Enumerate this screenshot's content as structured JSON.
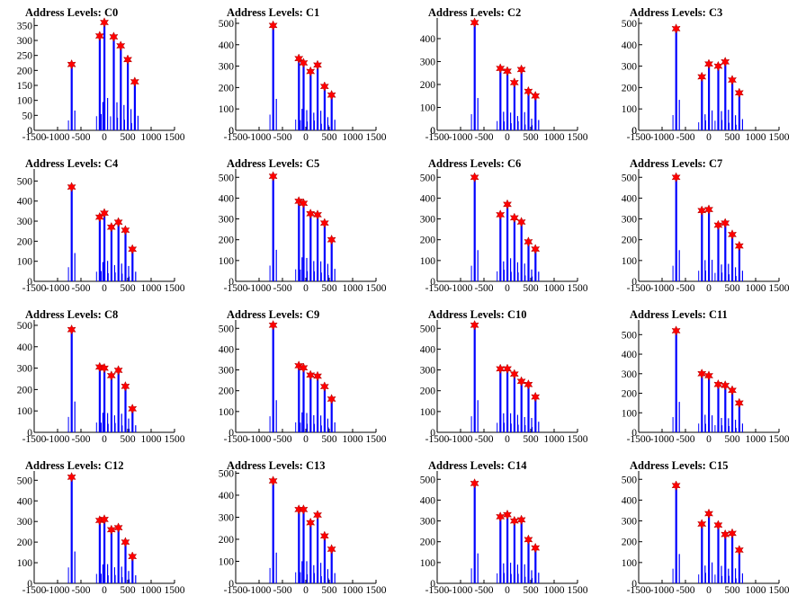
{
  "chart_data": [
    {
      "type": "bar",
      "title": "Address Levels: C0",
      "x": [
        -700,
        -100,
        0,
        200,
        350,
        500,
        650
      ],
      "values": [
        220,
        315,
        360,
        312,
        282,
        236,
        162
      ],
      "ylim": [
        0,
        375
      ],
      "yticks": [
        0,
        50,
        100,
        150,
        200,
        250,
        300,
        350
      ],
      "xticks": [
        -1500,
        -1000,
        -500,
        0,
        500,
        1000,
        1500
      ],
      "xlim": [
        -1500,
        1500
      ]
    },
    {
      "type": "bar",
      "title": "Address Levels: C1",
      "x": [
        -700,
        -150,
        -50,
        100,
        250,
        400,
        550
      ],
      "values": [
        490,
        335,
        315,
        275,
        305,
        205,
        165
      ],
      "ylim": [
        0,
        525
      ],
      "yticks": [
        0,
        100,
        200,
        300,
        400,
        500
      ],
      "xticks": [
        -1500,
        -1000,
        -500,
        0,
        500,
        1000,
        1500
      ],
      "xlim": [
        -1500,
        1500
      ]
    },
    {
      "type": "bar",
      "title": "Address Levels: C2",
      "x": [
        -700,
        -150,
        0,
        150,
        300,
        450,
        600
      ],
      "values": [
        470,
        270,
        258,
        208,
        265,
        170,
        150
      ],
      "ylim": [
        0,
        490
      ],
      "yticks": [
        0,
        100,
        200,
        300,
        400
      ],
      "xticks": [
        -1500,
        -1000,
        -500,
        0,
        500,
        1000,
        1500
      ],
      "xlim": [
        -1500,
        1500
      ]
    },
    {
      "type": "bar",
      "title": "Address Levels: C3",
      "x": [
        -700,
        -150,
        0,
        200,
        350,
        500,
        650
      ],
      "values": [
        475,
        250,
        310,
        300,
        320,
        235,
        175
      ],
      "ylim": [
        0,
        525
      ],
      "yticks": [
        0,
        100,
        200,
        300,
        400,
        500
      ],
      "xticks": [
        -1500,
        -1000,
        -500,
        0,
        500,
        1000,
        1500
      ],
      "xlim": [
        -1500,
        1500
      ]
    },
    {
      "type": "bar",
      "title": "Address Levels: C4",
      "x": [
        -700,
        -100,
        0,
        150,
        300,
        450,
        600
      ],
      "values": [
        470,
        320,
        340,
        270,
        295,
        255,
        160
      ],
      "ylim": [
        0,
        560
      ],
      "yticks": [
        100,
        200,
        300,
        400,
        500
      ],
      "xticks": [
        -1500,
        -1000,
        -500,
        0,
        500,
        1000,
        1500
      ],
      "xlim": [
        -1500,
        1500
      ]
    },
    {
      "type": "bar",
      "title": "Address Levels: C5",
      "x": [
        -700,
        -150,
        -50,
        100,
        250,
        400,
        550
      ],
      "values": [
        505,
        385,
        375,
        325,
        320,
        280,
        200
      ],
      "ylim": [
        0,
        540
      ],
      "yticks": [
        100,
        200,
        300,
        400,
        500
      ],
      "xticks": [
        -1500,
        -1000,
        -500,
        0,
        500,
        1000,
        1500
      ],
      "xlim": [
        -1500,
        1500
      ]
    },
    {
      "type": "bar",
      "title": "Address Levels: C6",
      "x": [
        -700,
        -150,
        0,
        150,
        300,
        450,
        600
      ],
      "values": [
        500,
        320,
        370,
        305,
        285,
        190,
        155
      ],
      "ylim": [
        0,
        540
      ],
      "yticks": [
        100,
        200,
        300,
        400,
        500
      ],
      "xticks": [
        -1500,
        -1000,
        -500,
        0,
        500,
        1000,
        1500
      ],
      "xlim": [
        -1500,
        1500
      ]
    },
    {
      "type": "bar",
      "title": "Address Levels: C7",
      "x": [
        -700,
        -150,
        0,
        200,
        350,
        500,
        650
      ],
      "values": [
        500,
        340,
        345,
        270,
        280,
        225,
        170
      ],
      "ylim": [
        0,
        540
      ],
      "yticks": [
        100,
        200,
        300,
        400,
        500
      ],
      "xticks": [
        -1500,
        -1000,
        -500,
        0,
        500,
        1000,
        1500
      ],
      "xlim": [
        -1500,
        1500
      ]
    },
    {
      "type": "bar",
      "title": "Address Levels: C8",
      "x": [
        -700,
        -100,
        0,
        150,
        300,
        450,
        600
      ],
      "values": [
        480,
        305,
        300,
        265,
        290,
        215,
        110
      ],
      "ylim": [
        0,
        525
      ],
      "yticks": [
        100,
        200,
        300,
        400,
        500
      ],
      "xticks": [
        -1500,
        -1000,
        -500,
        0,
        500,
        1000,
        1500
      ],
      "xlim": [
        -1500,
        1500
      ]
    },
    {
      "type": "bar",
      "title": "Address Levels: C9",
      "x": [
        -700,
        -150,
        -50,
        100,
        250,
        400,
        550
      ],
      "values": [
        515,
        320,
        310,
        275,
        270,
        220,
        160
      ],
      "ylim": [
        0,
        540
      ],
      "yticks": [
        100,
        200,
        300,
        400,
        500
      ],
      "xticks": [
        -1500,
        -1000,
        -500,
        0,
        500,
        1000,
        1500
      ],
      "xlim": [
        -1500,
        1500
      ]
    },
    {
      "type": "bar",
      "title": "Address Levels: C10",
      "x": [
        -700,
        -150,
        0,
        150,
        300,
        450,
        600
      ],
      "values": [
        515,
        305,
        305,
        280,
        245,
        230,
        170
      ],
      "ylim": [
        0,
        540
      ],
      "yticks": [
        100,
        200,
        300,
        400,
        500
      ],
      "xticks": [
        -1500,
        -1000,
        -500,
        0,
        500,
        1000,
        1500
      ],
      "xlim": [
        -1500,
        1500
      ]
    },
    {
      "type": "bar",
      "title": "Address Levels: C11",
      "x": [
        -700,
        -150,
        0,
        200,
        350,
        500,
        650
      ],
      "values": [
        520,
        300,
        290,
        245,
        240,
        215,
        150
      ],
      "ylim": [
        0,
        575
      ],
      "yticks": [
        100,
        200,
        300,
        400,
        500
      ],
      "xticks": [
        -1500,
        -1000,
        -500,
        0,
        500,
        1000,
        1500
      ],
      "xlim": [
        -1500,
        1500
      ]
    },
    {
      "type": "bar",
      "title": "Address Levels: C12",
      "x": [
        -700,
        -100,
        0,
        150,
        300,
        450,
        600
      ],
      "values": [
        515,
        305,
        310,
        260,
        270,
        200,
        130
      ],
      "ylim": [
        0,
        545
      ],
      "yticks": [
        100,
        200,
        300,
        400,
        500
      ],
      "xticks": [
        -1500,
        -1000,
        -500,
        0,
        500,
        1000,
        1500
      ],
      "xlim": [
        -1500,
        1500
      ]
    },
    {
      "type": "bar",
      "title": "Address Levels: C13",
      "x": [
        -700,
        -150,
        -50,
        100,
        250,
        400,
        550
      ],
      "values": [
        465,
        335,
        335,
        275,
        310,
        215,
        155
      ],
      "ylim": [
        0,
        510
      ],
      "yticks": [
        100,
        200,
        300,
        400,
        500
      ],
      "xticks": [
        -1500,
        -1000,
        -500,
        0,
        500,
        1000,
        1500
      ],
      "xlim": [
        -1500,
        1500
      ]
    },
    {
      "type": "bar",
      "title": "Address Levels: C14",
      "x": [
        -700,
        -150,
        0,
        150,
        300,
        450,
        600
      ],
      "values": [
        480,
        320,
        330,
        300,
        305,
        210,
        170
      ],
      "ylim": [
        0,
        540
      ],
      "yticks": [
        100,
        200,
        300,
        400,
        500
      ],
      "xticks": [
        -1500,
        -1000,
        -500,
        0,
        500,
        1000,
        1500
      ],
      "xlim": [
        -1500,
        1500
      ]
    },
    {
      "type": "bar",
      "title": "Address Levels: C15",
      "x": [
        -700,
        -150,
        0,
        200,
        350,
        500,
        650
      ],
      "values": [
        470,
        285,
        335,
        280,
        235,
        240,
        160
      ],
      "ylim": [
        0,
        540
      ],
      "yticks": [
        100,
        200,
        300,
        400,
        500
      ],
      "xticks": [
        -1500,
        -1000,
        -500,
        0,
        500,
        1000,
        1500
      ],
      "xlim": [
        -1500,
        1500
      ]
    }
  ],
  "colors": {
    "bars": "#0000ff",
    "markers": "#ff0000",
    "axes": "#000000"
  }
}
